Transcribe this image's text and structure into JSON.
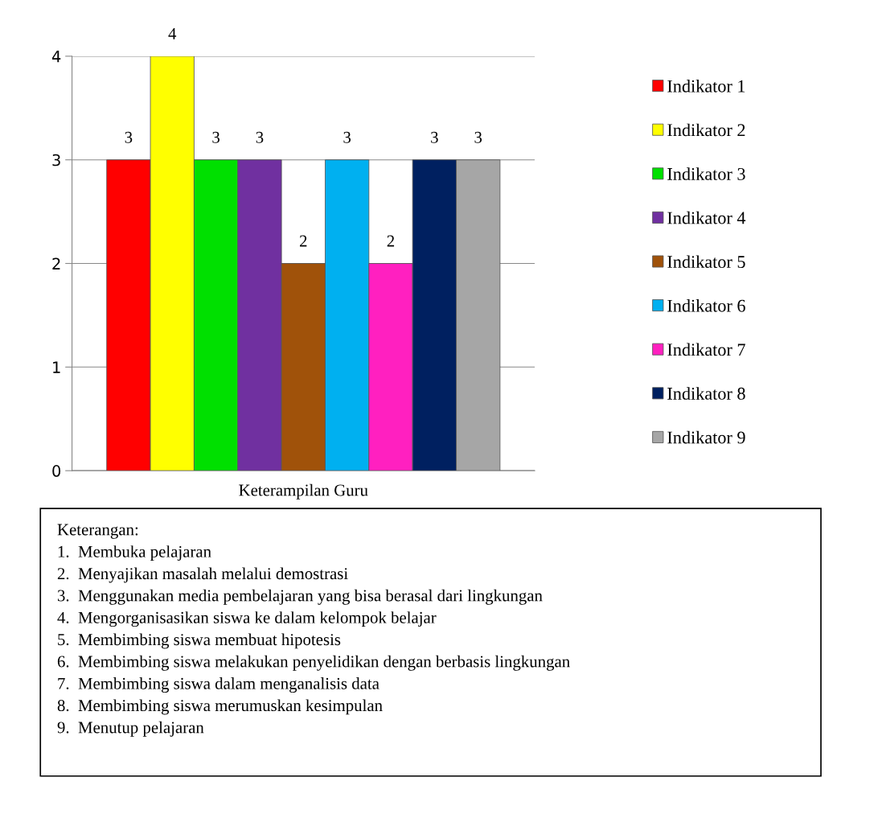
{
  "chart_data": {
    "type": "bar",
    "categories": [
      "Keterampilan Guru"
    ],
    "series": [
      {
        "name": "Indikator 1",
        "color": "#ff0000",
        "values": [
          3
        ]
      },
      {
        "name": "Indikator 2",
        "color": "#ffff00",
        "values": [
          4
        ]
      },
      {
        "name": "Indikator 3",
        "color": "#00e000",
        "values": [
          3
        ]
      },
      {
        "name": "Indikator 4",
        "color": "#7030a0",
        "values": [
          3
        ]
      },
      {
        "name": "Indikator 5",
        "color": "#a0520a",
        "values": [
          2
        ]
      },
      {
        "name": "Indikator 6",
        "color": "#00b0f0",
        "values": [
          3
        ]
      },
      {
        "name": "Indikator 7",
        "color": "#ff20c0",
        "values": [
          2
        ]
      },
      {
        "name": "Indikator 8",
        "color": "#002060",
        "values": [
          3
        ]
      },
      {
        "name": "Indikator 9",
        "color": "#a6a6a6",
        "values": [
          3
        ]
      }
    ],
    "ylim": [
      0,
      4
    ],
    "yticks": [
      0,
      1,
      2,
      3,
      4
    ],
    "grid": "y",
    "legend": "right",
    "data_labels": true,
    "annotations": [
      "Keterangan:",
      "1.  Membuka pelajaran",
      "2.  Menyajikan masalah melalui demostrasi",
      "3.  Menggunakan media pembelajaran yang bisa berasal dari lingkungan",
      "4.  Mengorganisasikan siswa ke dalam kelompok belajar",
      "5.  Membimbing siswa membuat hipotesis",
      "6.  Membimbing siswa melakukan penyelidikan dengan berbasis lingkungan",
      "7.  Membimbing siswa dalam menganalisis data",
      "8.  Membimbing siswa merumuskan kesimpulan",
      "9.  Menutup pelajaran"
    ]
  }
}
